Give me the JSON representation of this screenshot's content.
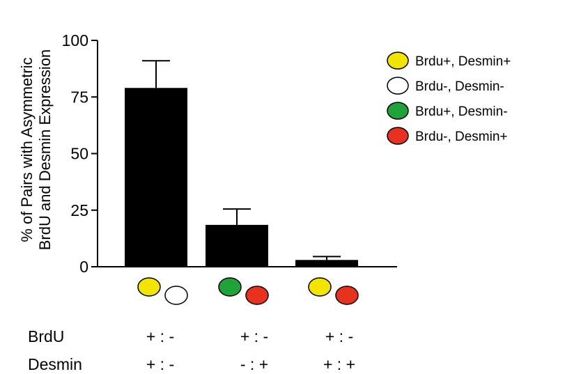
{
  "chart_data": {
    "type": "bar",
    "categories": [
      "Brdu+, Desmin+ / Brdu-, Desmin-",
      "Brdu+, Desmin- / Brdu-, Desmin+",
      "Brdu+, Desmin+ / Brdu-, Desmin+"
    ],
    "values": [
      79,
      18.5,
      3
    ],
    "errors": [
      12,
      7,
      1.5
    ],
    "ylabel": [
      "% of Pairs with Asymmetric",
      "BrdU and Desmin Expression"
    ],
    "ylim": [
      0,
      100
    ],
    "yticks": [
      0,
      25,
      50,
      75,
      100
    ],
    "bar_color": "#000000",
    "grid": false,
    "legend_position": "top-right",
    "legend": [
      {
        "label": "Brdu+, Desmin+",
        "color": "#f2e600"
      },
      {
        "label": "Brdu-, Desmin-",
        "color": "#ffffff"
      },
      {
        "label": "Brdu+, Desmin-",
        "color": "#1fa23a"
      },
      {
        "label": "Brdu-, Desmin+",
        "color": "#e8311e"
      }
    ],
    "bar_markers": [
      [
        "#f2e600",
        "#ffffff"
      ],
      [
        "#1fa23a",
        "#e8311e"
      ],
      [
        "#f2e600",
        "#e8311e"
      ]
    ],
    "combo_table": {
      "rows": [
        {
          "label": "BrdU",
          "values": [
            "+ : -",
            "+ : -",
            "+ : -"
          ]
        },
        {
          "label": "Desmin",
          "values": [
            "+ : -",
            "- : +",
            "+ : +"
          ]
        }
      ]
    }
  }
}
